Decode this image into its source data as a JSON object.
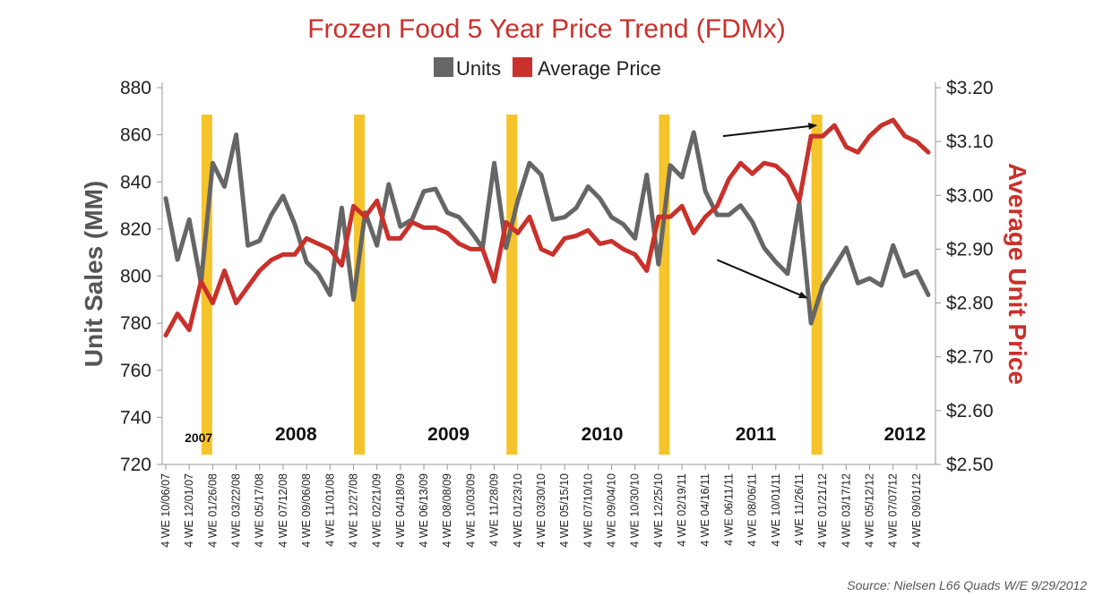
{
  "chart_data": {
    "type": "line",
    "title": "Frozen Food 5 Year Price Trend (FDMx)",
    "ylabel_left": "Unit Sales (MM)",
    "ylabel_right": "Average Unit Price",
    "ylim_left": [
      720,
      880
    ],
    "ylim_right": [
      2.5,
      3.2
    ],
    "yticks_left": [
      "720",
      "740",
      "760",
      "780",
      "800",
      "820",
      "840",
      "860",
      "880"
    ],
    "yticks_right": [
      "$2.50",
      "$2.60",
      "$2.70",
      "$2.80",
      "$2.90",
      "$3.00",
      "$3.10",
      "$3.20"
    ],
    "x_tick_labels": [
      "4 WE 10/06/07",
      "4 WE 12/01/07",
      "4 WE 01/26/08",
      "4 WE 03/22/08",
      "4 WE 05/17/08",
      "4 WE 07/12/08",
      "4 WE 09/06/08",
      "4 WE 11/01/08",
      "4 WE 12/27/08",
      "4 WE 02/21/09",
      "4 WE 04/18/09",
      "4 WE 06/13/09",
      "4 WE 08/08/09",
      "4 WE 10/03/09",
      "4 WE 11/28/09",
      "4 WE 01/23/10",
      "4 WE 03/30/10",
      "4 WE 05/15/10",
      "4 WE 07/10/10",
      "4 WE 09/04/10",
      "4 WE 10/30/10",
      "4 WE 12/25/10",
      "4 WE 02/19/11",
      "4 WE 04/16/11",
      "4 WE 06/11/11",
      "4 WE 08/06/11",
      "4 WE 10/01/11",
      "4 WE 11/26/11",
      "4 WE 01/21/12",
      "4 WE 03/17/12",
      "4 WE 05/12/12",
      "4 WE 07/07/12",
      "4 WE 09/01/12"
    ],
    "n_points": 66,
    "series": [
      {
        "name": "Units",
        "axis": "left",
        "color": "#666666",
        "values": [
          833,
          807,
          824,
          797,
          848,
          838,
          860,
          813,
          815,
          826,
          834,
          822,
          806,
          801,
          792,
          829,
          790,
          827,
          813,
          839,
          821,
          824,
          836,
          837,
          827,
          825,
          819,
          812,
          848,
          812,
          832,
          848,
          843,
          824,
          825,
          829,
          838,
          833,
          825,
          822,
          816,
          843,
          805,
          847,
          842,
          861,
          836,
          826,
          826,
          830,
          823,
          812,
          806,
          801,
          831,
          780,
          796,
          804,
          812,
          797,
          799,
          796,
          813,
          800,
          802,
          792
        ]
      },
      {
        "name": "Average Price",
        "axis": "right",
        "color": "#c8312c",
        "values": [
          2.74,
          2.78,
          2.75,
          2.84,
          2.8,
          2.86,
          2.8,
          2.83,
          2.86,
          2.88,
          2.89,
          2.89,
          2.92,
          2.91,
          2.9,
          2.87,
          2.98,
          2.96,
          2.99,
          2.92,
          2.92,
          2.95,
          2.94,
          2.94,
          2.93,
          2.91,
          2.9,
          2.9,
          2.84,
          2.95,
          2.93,
          2.96,
          2.9,
          2.89,
          2.92,
          2.925,
          2.935,
          2.91,
          2.915,
          2.9,
          2.89,
          2.86,
          2.96,
          2.96,
          2.98,
          2.93,
          2.96,
          2.98,
          3.03,
          3.06,
          3.04,
          3.06,
          3.055,
          3.035,
          2.99,
          3.11,
          3.11,
          3.13,
          3.09,
          3.08,
          3.11,
          3.13,
          3.14,
          3.11,
          3.1,
          3.08
        ]
      }
    ],
    "year_markers": [
      {
        "label": "2007",
        "index": 2.8,
        "small": true
      },
      {
        "label": "2008",
        "index": 11.1
      },
      {
        "label": "2009",
        "index": 24.1
      },
      {
        "label": "2010",
        "index": 37.2
      },
      {
        "label": "2011",
        "index": 50.3
      },
      {
        "label": "2012",
        "index": 63.0
      }
    ],
    "year_dividers": [
      3.5,
      16.5,
      29.5,
      42.5,
      55.5
    ],
    "divider_color": "#f5c42c",
    "arrows": [
      {
        "from": [
          47.5,
          3.11
        ],
        "to": [
          55.4,
          3.13
        ],
        "axis": "right"
      },
      {
        "from": [
          47.0,
          2.88
        ],
        "to": [
          54.6,
          2.81
        ],
        "axis": "right"
      }
    ],
    "legend": [
      "Units",
      "Average Price"
    ],
    "legend_position": "top-center",
    "grid": false,
    "source": "Source: Nielsen L66 Quads W/E 9/29/2012"
  }
}
